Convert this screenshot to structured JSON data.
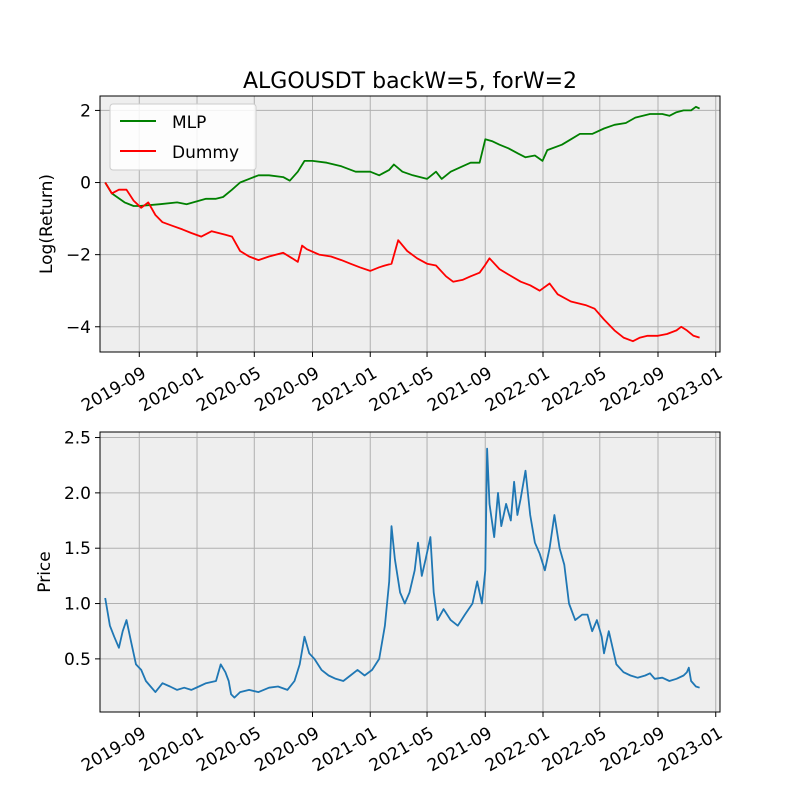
{
  "chart_data": [
    {
      "type": "line",
      "title": "ALGOUSDT backW=5, forW=2",
      "xlabel": "",
      "ylabel": "Log(Return)",
      "xlim": [
        "2019-06-10",
        "2023-01-10"
      ],
      "ylim": [
        -4.7,
        2.4
      ],
      "yticks": [
        2,
        0,
        -2,
        -4
      ],
      "yticklabels": [
        "2",
        "0",
        "−2",
        "−4"
      ],
      "xticks": [
        "2019-09",
        "2020-01",
        "2020-05",
        "2020-09",
        "2021-01",
        "2021-05",
        "2021-09",
        "2022-01",
        "2022-05",
        "2022-09",
        "2023-01"
      ],
      "grid": true,
      "legend": "top-left",
      "colors": {
        "plot_bg": "#eeeeee",
        "grid": "#b0b0b0"
      },
      "series": [
        {
          "name": "MLP",
          "color": "#008000",
          "x": [
            "2019-06-21",
            "2019-07-05",
            "2019-08-01",
            "2019-08-20",
            "2019-09-01",
            "2019-10-15",
            "2019-11-20",
            "2019-12-10",
            "2020-01-20",
            "2020-02-10",
            "2020-02-25",
            "2020-03-15",
            "2020-04-01",
            "2020-04-20",
            "2020-05-10",
            "2020-06-01",
            "2020-07-01",
            "2020-07-15",
            "2020-08-01",
            "2020-08-15",
            "2020-09-01",
            "2020-10-01",
            "2020-11-01",
            "2020-12-01",
            "2021-01-01",
            "2021-01-20",
            "2021-02-10",
            "2021-02-20",
            "2021-03-10",
            "2021-04-01",
            "2021-05-01",
            "2021-05-20",
            "2021-06-01",
            "2021-06-20",
            "2021-07-15",
            "2021-08-01",
            "2021-08-20",
            "2021-09-01",
            "2021-09-15",
            "2021-10-01",
            "2021-10-20",
            "2021-11-10",
            "2021-11-25",
            "2021-12-15",
            "2021-12-31",
            "2022-01-10",
            "2022-02-10",
            "2022-03-01",
            "2022-03-20",
            "2022-04-15",
            "2022-05-10",
            "2022-06-01",
            "2022-06-25",
            "2022-07-15",
            "2022-08-15",
            "2022-09-10",
            "2022-09-25",
            "2022-10-10",
            "2022-10-25",
            "2022-11-10",
            "2022-11-20",
            "2022-11-28"
          ],
          "y": [
            0.0,
            -0.3,
            -0.55,
            -0.65,
            -0.65,
            -0.6,
            -0.55,
            -0.6,
            -0.45,
            -0.45,
            -0.4,
            -0.2,
            0.0,
            0.1,
            0.2,
            0.2,
            0.15,
            0.05,
            0.3,
            0.6,
            0.6,
            0.55,
            0.45,
            0.3,
            0.3,
            0.2,
            0.35,
            0.5,
            0.3,
            0.2,
            0.1,
            0.3,
            0.1,
            0.3,
            0.45,
            0.55,
            0.55,
            1.2,
            1.15,
            1.05,
            0.95,
            0.8,
            0.7,
            0.75,
            0.6,
            0.9,
            1.05,
            1.2,
            1.35,
            1.35,
            1.5,
            1.6,
            1.65,
            1.8,
            1.9,
            1.9,
            1.85,
            1.95,
            2.0,
            2.0,
            2.1,
            2.05
          ]
        },
        {
          "name": "Dummy",
          "color": "#ff0000",
          "x": [
            "2019-06-21",
            "2019-07-05",
            "2019-07-20",
            "2019-08-05",
            "2019-08-20",
            "2019-09-05",
            "2019-09-20",
            "2019-10-05",
            "2019-10-20",
            "2019-11-10",
            "2019-12-01",
            "2019-12-20",
            "2020-01-10",
            "2020-02-01",
            "2020-03-01",
            "2020-03-15",
            "2020-04-01",
            "2020-04-20",
            "2020-05-10",
            "2020-06-01",
            "2020-07-01",
            "2020-07-20",
            "2020-08-01",
            "2020-08-10",
            "2020-08-20",
            "2020-09-15",
            "2020-10-10",
            "2020-11-01",
            "2020-11-20",
            "2020-12-10",
            "2021-01-01",
            "2021-01-20",
            "2021-02-01",
            "2021-02-15",
            "2021-03-01",
            "2021-03-20",
            "2021-04-10",
            "2021-05-01",
            "2021-05-20",
            "2021-06-10",
            "2021-06-25",
            "2021-07-15",
            "2021-08-01",
            "2021-08-20",
            "2021-08-31",
            "2021-09-10",
            "2021-10-01",
            "2021-10-20",
            "2021-11-15",
            "2021-12-05",
            "2021-12-25",
            "2022-01-15",
            "2022-02-01",
            "2022-03-01",
            "2022-04-01",
            "2022-04-20",
            "2022-05-10",
            "2022-06-01",
            "2022-06-20",
            "2022-07-10",
            "2022-07-25",
            "2022-08-10",
            "2022-09-01",
            "2022-09-20",
            "2022-10-10",
            "2022-10-20",
            "2022-11-01",
            "2022-11-15",
            "2022-11-28"
          ],
          "y": [
            0.0,
            -0.3,
            -0.2,
            -0.2,
            -0.5,
            -0.7,
            -0.55,
            -0.9,
            -1.1,
            -1.2,
            -1.3,
            -1.4,
            -1.5,
            -1.35,
            -1.45,
            -1.5,
            -1.9,
            -2.05,
            -2.15,
            -2.05,
            -1.95,
            -2.1,
            -2.2,
            -1.75,
            -1.85,
            -2.0,
            -2.05,
            -2.15,
            -2.25,
            -2.35,
            -2.45,
            -2.35,
            -2.3,
            -2.25,
            -1.6,
            -1.9,
            -2.1,
            -2.25,
            -2.3,
            -2.6,
            -2.75,
            -2.7,
            -2.6,
            -2.5,
            -2.3,
            -2.1,
            -2.4,
            -2.55,
            -2.75,
            -2.85,
            -3.0,
            -2.8,
            -3.1,
            -3.3,
            -3.4,
            -3.5,
            -3.8,
            -4.1,
            -4.3,
            -4.4,
            -4.3,
            -4.25,
            -4.25,
            -4.2,
            -4.1,
            -4.0,
            -4.1,
            -4.25,
            -4.3
          ]
        }
      ]
    },
    {
      "type": "line",
      "title": "",
      "xlabel": "",
      "ylabel": "Price",
      "xlim": [
        "2019-06-10",
        "2023-01-10"
      ],
      "ylim": [
        0.02,
        2.55
      ],
      "yticks": [
        2.5,
        2.0,
        1.5,
        1.0,
        0.5
      ],
      "yticklabels": [
        "2.5",
        "2.0",
        "1.5",
        "1.0",
        "0.5"
      ],
      "xticks": [
        "2019-09",
        "2020-01",
        "2020-05",
        "2020-09",
        "2021-01",
        "2021-05",
        "2021-09",
        "2022-01",
        "2022-05",
        "2022-09",
        "2023-01"
      ],
      "grid": true,
      "colors": {
        "plot_bg": "#eeeeee",
        "grid": "#b0b0b0"
      },
      "series": [
        {
          "color": "#1f77b4",
          "x": [
            "2019-06-21",
            "2019-06-25",
            "2019-07-01",
            "2019-07-10",
            "2019-07-20",
            "2019-07-28",
            "2019-08-05",
            "2019-08-15",
            "2019-08-25",
            "2019-09-05",
            "2019-09-15",
            "2019-09-25",
            "2019-10-05",
            "2019-10-20",
            "2019-11-05",
            "2019-11-20",
            "2019-12-05",
            "2019-12-20",
            "2020-01-05",
            "2020-01-20",
            "2020-02-10",
            "2020-02-20",
            "2020-03-01",
            "2020-03-08",
            "2020-03-13",
            "2020-03-20",
            "2020-04-01",
            "2020-04-20",
            "2020-05-10",
            "2020-06-01",
            "2020-06-20",
            "2020-07-10",
            "2020-07-25",
            "2020-08-05",
            "2020-08-15",
            "2020-08-25",
            "2020-09-05",
            "2020-09-20",
            "2020-10-05",
            "2020-10-20",
            "2020-11-05",
            "2020-11-20",
            "2020-12-05",
            "2020-12-20",
            "2021-01-05",
            "2021-01-20",
            "2021-02-01",
            "2021-02-10",
            "2021-02-15",
            "2021-02-22",
            "2021-03-05",
            "2021-03-15",
            "2021-03-25",
            "2021-04-05",
            "2021-04-12",
            "2021-04-20",
            "2021-04-28",
            "2021-05-08",
            "2021-05-15",
            "2021-05-23",
            "2021-06-05",
            "2021-06-20",
            "2021-07-05",
            "2021-07-20",
            "2021-08-05",
            "2021-08-15",
            "2021-08-25",
            "2021-09-01",
            "2021-09-05",
            "2021-09-10",
            "2021-09-20",
            "2021-09-28",
            "2021-10-05",
            "2021-10-15",
            "2021-10-25",
            "2021-11-01",
            "2021-11-08",
            "2021-11-15",
            "2021-11-25",
            "2021-12-05",
            "2021-12-15",
            "2021-12-25",
            "2022-01-05",
            "2022-01-15",
            "2022-01-25",
            "2022-02-05",
            "2022-02-15",
            "2022-02-25",
            "2022-03-10",
            "2022-03-25",
            "2022-04-05",
            "2022-04-15",
            "2022-04-25",
            "2022-05-05",
            "2022-05-10",
            "2022-05-20",
            "2022-06-05",
            "2022-06-20",
            "2022-07-05",
            "2022-07-20",
            "2022-08-05",
            "2022-08-15",
            "2022-08-25",
            "2022-09-10",
            "2022-09-25",
            "2022-10-10",
            "2022-10-25",
            "2022-11-01",
            "2022-11-05",
            "2022-11-10",
            "2022-11-20",
            "2022-11-28"
          ],
          "y": [
            1.05,
            0.95,
            0.8,
            0.7,
            0.6,
            0.75,
            0.85,
            0.65,
            0.45,
            0.4,
            0.3,
            0.25,
            0.2,
            0.28,
            0.25,
            0.22,
            0.24,
            0.22,
            0.25,
            0.28,
            0.3,
            0.45,
            0.38,
            0.3,
            0.18,
            0.15,
            0.2,
            0.22,
            0.2,
            0.24,
            0.25,
            0.22,
            0.3,
            0.45,
            0.7,
            0.55,
            0.5,
            0.4,
            0.35,
            0.32,
            0.3,
            0.35,
            0.4,
            0.35,
            0.4,
            0.5,
            0.8,
            1.2,
            1.7,
            1.4,
            1.1,
            1.0,
            1.1,
            1.3,
            1.55,
            1.25,
            1.4,
            1.6,
            1.1,
            0.85,
            0.95,
            0.85,
            0.8,
            0.9,
            1.0,
            1.2,
            1.0,
            1.3,
            2.4,
            1.9,
            1.6,
            2.0,
            1.7,
            1.9,
            1.75,
            2.1,
            1.8,
            1.95,
            2.2,
            1.8,
            1.55,
            1.45,
            1.3,
            1.5,
            1.8,
            1.5,
            1.35,
            1.0,
            0.85,
            0.9,
            0.9,
            0.75,
            0.85,
            0.7,
            0.55,
            0.75,
            0.45,
            0.38,
            0.35,
            0.33,
            0.35,
            0.37,
            0.32,
            0.33,
            0.3,
            0.32,
            0.35,
            0.38,
            0.42,
            0.3,
            0.25,
            0.24
          ]
        }
      ]
    }
  ]
}
